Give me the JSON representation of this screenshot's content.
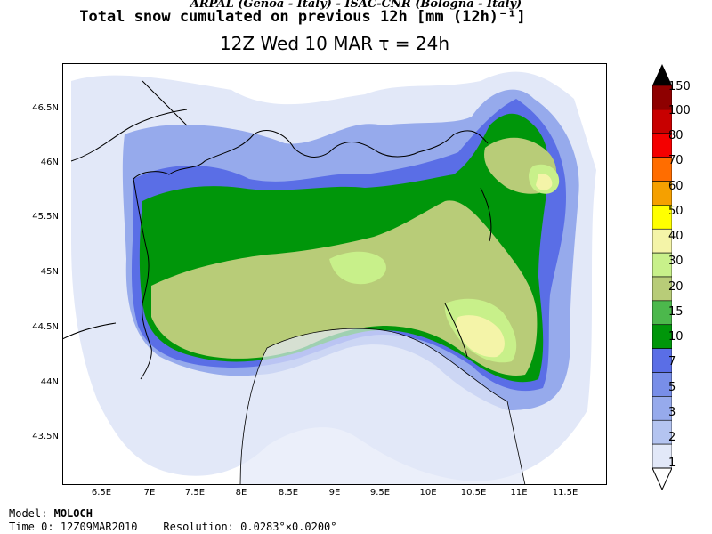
{
  "header": {
    "credit": "ARPAL (Genoa - Italy)  -  ISAC-CNR (Bologna - Italy)",
    "title": "Total snow cumulated on previous 12h [mm (12h)⁻¹]",
    "valid_time": "12Z Wed 10 MAR  τ = 24h"
  },
  "axes": {
    "lat_labels": [
      "46.5N",
      "46N",
      "45.5N",
      "45N",
      "44.5N",
      "44N",
      "43.5N"
    ],
    "lon_labels": [
      "6.5E",
      "7E",
      "7.5E",
      "8E",
      "8.5E",
      "9E",
      "9.5E",
      "10E",
      "10.5E",
      "11E",
      "11.5E"
    ]
  },
  "legend": {
    "levels": [
      "150",
      "100",
      "80",
      "70",
      "60",
      "50",
      "40",
      "30",
      "20",
      "15",
      "10",
      "7",
      "5",
      "3",
      "2",
      "1"
    ],
    "colors": [
      "#8e0000",
      "#c80000",
      "#f40000",
      "#ff6d00",
      "#f5a000",
      "#ffff00",
      "#f4f4a8",
      "#c8f08a",
      "#b8cc78",
      "#4cb84c",
      "#00960a",
      "#5a6ee6",
      "#788ee8",
      "#96aaec",
      "#b4c4f0",
      "#e2e8f8"
    ]
  },
  "footer": {
    "model_label": "Model:",
    "model_name": "MOLOCH",
    "time_label": "Time 0:",
    "time_value": "12Z09MAR2010",
    "res_label": "Resolution:",
    "res_value": "0.0283°×0.0200°"
  }
}
